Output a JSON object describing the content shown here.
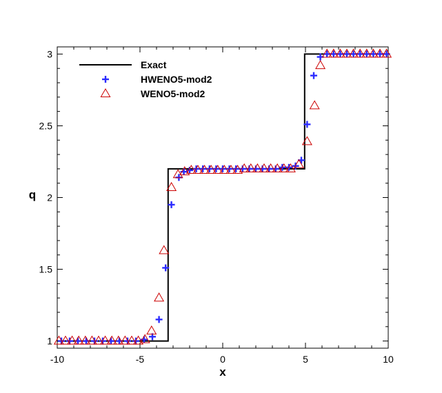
{
  "chart_data": {
    "type": "line",
    "xlabel": "x",
    "ylabel": "q",
    "xlim": [
      -10,
      10
    ],
    "ylim": [
      0.95,
      3.05
    ],
    "xticks": [
      -10,
      -5,
      0,
      5,
      10
    ],
    "yticks": [
      1,
      1.5,
      2,
      2.5,
      3
    ],
    "legend_position": "top-left",
    "grid": false,
    "series": [
      {
        "name": "Exact",
        "marker": "line",
        "color": "#000000",
        "x": [
          -10,
          -3.3,
          -3.3,
          4.95,
          4.95,
          10
        ],
        "y": [
          1,
          1,
          2.2,
          2.2,
          3,
          3
        ]
      },
      {
        "name": "HWENO5-mod2",
        "marker": "plus",
        "color": "#2b2bff",
        "x": [
          -9.75,
          -9.25,
          -8.75,
          -8.25,
          -7.75,
          -7.25,
          -6.75,
          -6.25,
          -5.75,
          -5.25,
          -4.75,
          -4.25,
          -3.85,
          -3.45,
          -3.1,
          -2.65,
          -2.35,
          -2.0,
          -1.6,
          -1.2,
          -0.8,
          -0.4,
          0.0,
          0.4,
          0.8,
          1.2,
          1.6,
          2.0,
          2.4,
          2.8,
          3.2,
          3.6,
          4.0,
          4.4,
          4.75,
          5.1,
          5.5,
          5.9,
          6.3,
          6.7,
          7.1,
          7.5,
          7.9,
          8.3,
          8.7,
          9.1,
          9.5,
          9.9
        ],
        "y": [
          1.0,
          1.0,
          1.0,
          1.0,
          1.0,
          1.0,
          1.0,
          1.0,
          1.0,
          1.0,
          1.01,
          1.03,
          1.15,
          1.51,
          1.95,
          2.14,
          2.18,
          2.19,
          2.2,
          2.2,
          2.2,
          2.2,
          2.2,
          2.2,
          2.2,
          2.2,
          2.2,
          2.2,
          2.2,
          2.2,
          2.2,
          2.21,
          2.21,
          2.22,
          2.26,
          2.51,
          2.85,
          2.98,
          3.0,
          3.0,
          3.0,
          3.0,
          3.0,
          3.0,
          3.0,
          3.0,
          3.0,
          3.0
        ]
      },
      {
        "name": "WENO5-mod2",
        "marker": "triangle",
        "color": "#cc0000",
        "x": [
          -9.9,
          -9.5,
          -9.1,
          -8.7,
          -8.3,
          -7.9,
          -7.5,
          -7.1,
          -6.7,
          -6.3,
          -5.9,
          -5.5,
          -5.1,
          -4.7,
          -4.3,
          -3.85,
          -3.55,
          -3.1,
          -2.7,
          -2.3,
          -1.9,
          -1.5,
          -1.1,
          -0.7,
          -0.3,
          0.1,
          0.5,
          0.9,
          1.3,
          1.7,
          2.1,
          2.5,
          2.9,
          3.3,
          3.7,
          4.1,
          4.6,
          5.1,
          5.55,
          5.9,
          6.3,
          6.7,
          7.1,
          7.5,
          7.9,
          8.3,
          8.7,
          9.1,
          9.5,
          9.9
        ],
        "y": [
          1.0,
          1.0,
          1.0,
          1.0,
          1.0,
          1.0,
          1.0,
          1.0,
          1.0,
          1.0,
          1.0,
          1.0,
          1.0,
          1.01,
          1.07,
          1.3,
          1.63,
          2.07,
          2.16,
          2.18,
          2.19,
          2.19,
          2.19,
          2.19,
          2.19,
          2.19,
          2.19,
          2.19,
          2.2,
          2.2,
          2.2,
          2.2,
          2.2,
          2.2,
          2.2,
          2.2,
          2.23,
          2.39,
          2.64,
          2.92,
          3.0,
          3.0,
          3.0,
          3.0,
          3.0,
          3.0,
          3.0,
          3.0,
          3.0,
          3.0
        ]
      }
    ]
  }
}
